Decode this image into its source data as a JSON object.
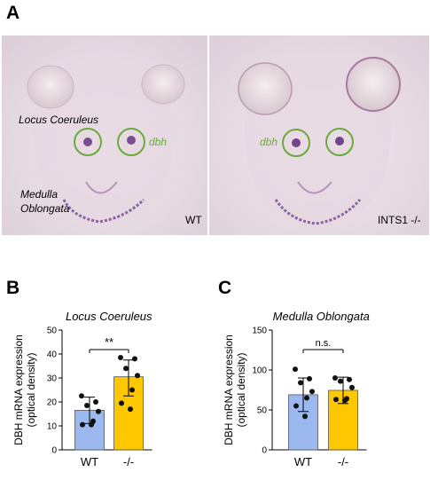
{
  "panels": {
    "a": {
      "letter": "A",
      "left_image": {
        "labels": [
          "Locus Coeruleus",
          "dbh",
          "Medulla Oblongata"
        ],
        "genotype": "WT"
      },
      "right_image": {
        "labels": [
          "dbh"
        ],
        "genotype": "INTS1 -/-"
      },
      "colors": {
        "circle": "#6aab3c",
        "label_green": "#6aab3c",
        "stain": "#5a2a7a"
      }
    },
    "b": {
      "letter": "B"
    },
    "c": {
      "letter": "C"
    }
  },
  "chart_data": [
    {
      "type": "bar",
      "title": "Locus Coeruleus",
      "ylabel": "DBH mRNA expression\n(optical density)",
      "categories": [
        "WT",
        "-/-"
      ],
      "values": [
        16.5,
        30.5
      ],
      "error_low": [
        11,
        22.5
      ],
      "error_high": [
        22,
        37.5
      ],
      "points": [
        [
          22.5,
          20,
          18.5,
          16,
          12,
          10.5,
          10.5
        ],
        [
          38.5,
          38,
          34,
          31,
          25,
          19.5,
          17
        ]
      ],
      "ylim": [
        0,
        50
      ],
      "yticks": [
        0,
        10,
        20,
        30,
        40,
        50
      ],
      "significance": "**",
      "bar_colors": [
        "#9bb9ef",
        "#ffc700"
      ]
    },
    {
      "type": "bar",
      "title": "Medulla Oblongata",
      "ylabel": "DBH mRNA expression\n(optical density)",
      "categories": [
        "WT",
        "-/-"
      ],
      "values": [
        69,
        74.5
      ],
      "error_low": [
        48,
        58
      ],
      "error_high": [
        90,
        91
      ],
      "points": [
        [
          101,
          89,
          84,
          73,
          65,
          55,
          42
        ],
        [
          90,
          88,
          86,
          78,
          64,
          63,
          62
        ]
      ],
      "ylim": [
        0,
        150
      ],
      "yticks": [
        0,
        50,
        100,
        150
      ],
      "significance": "n.s.",
      "bar_colors": [
        "#9bb9ef",
        "#ffc700"
      ]
    }
  ]
}
